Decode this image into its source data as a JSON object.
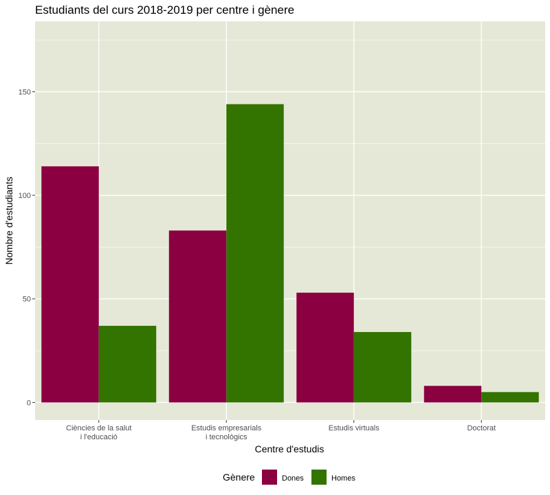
{
  "chart_data": {
    "type": "bar",
    "title": "Estudiants del curs 2018-2019 per centre i gènere",
    "xlabel": "Centre d'estudis",
    "ylabel": "Nombre d'estudiants",
    "categories": [
      [
        "Ciències de la salut",
        "i l'educació"
      ],
      [
        "Estudis empresarials",
        "i tecnològics"
      ],
      [
        "Estudis virtuals"
      ],
      [
        "Doctorat"
      ]
    ],
    "series": [
      {
        "name": "Dones",
        "color": "#8B0040",
        "values": [
          114,
          83,
          53,
          8
        ]
      },
      {
        "name": "Homes",
        "color": "#337300",
        "values": [
          37,
          144,
          34,
          5
        ]
      }
    ],
    "ylim": [
      -8.5,
      184
    ],
    "yticks": [
      0,
      50,
      100,
      150
    ],
    "legend": {
      "title": "Gènere",
      "position": "bottom"
    },
    "panel_background": "#E5E8D6",
    "grid": true
  }
}
